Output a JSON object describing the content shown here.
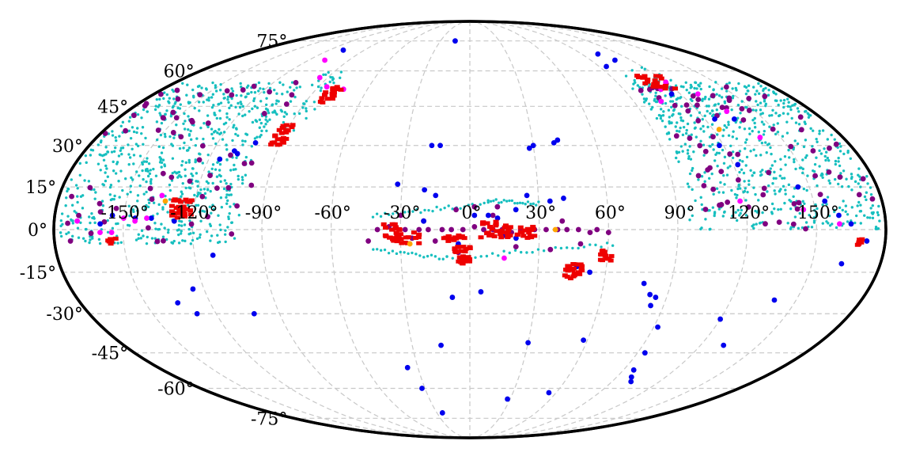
{
  "chart_data": {
    "type": "scatter",
    "projection": "mollweide",
    "title": "",
    "xlabel": "",
    "ylabel": "",
    "xlim": [
      -180,
      180
    ],
    "ylim": [
      -90,
      90
    ],
    "grid": true,
    "longitude_ticks": [
      -150,
      -120,
      -90,
      -60,
      -30,
      0,
      30,
      60,
      90,
      120,
      150
    ],
    "latitude_ticks": [
      -75,
      -60,
      -45,
      -30,
      -15,
      0,
      15,
      30,
      45,
      60,
      75
    ],
    "lon_labels": [
      "-150°",
      "-120°",
      "-90°",
      "-60°",
      "-30°",
      "0°",
      "30°",
      "60°",
      "90°",
      "120°",
      "150°"
    ],
    "lat_labels": [
      "-75°",
      "-60°",
      "-45°",
      "-30°",
      "-15°",
      "0°",
      "15°",
      "30°",
      "45°",
      "60°",
      "75°"
    ],
    "colors": {
      "cyan": "#17bfbf",
      "purple": "#800080",
      "blue": "#0000ee",
      "magenta": "#ff00ff",
      "red": "#ee0000",
      "orange": "#ffa500"
    },
    "series": [
      {
        "color_key": "cyan",
        "style": "small-dot",
        "regions": [
          {
            "lon": [
              -178,
              -100
            ],
            "lat": [
              -5,
              55
            ],
            "count": 700
          },
          {
            "lon": [
              -100,
              -82
            ],
            "lat": [
              35,
              62
            ],
            "count": 40
          },
          {
            "lon": [
              95,
              178
            ],
            "lat": [
              0,
              55
            ],
            "count": 650
          },
          {
            "lon": [
              95,
              130
            ],
            "lat": [
              45,
              62
            ],
            "count": 40
          }
        ],
        "paths": [
          {
            "lon": [
              -42,
              8
            ],
            "lat": [
              5,
              9
            ],
            "count": 30
          },
          {
            "lon": [
              8,
              30
            ],
            "lat": [
              10,
              9
            ],
            "count": 20
          },
          {
            "lon": [
              -42,
              -10
            ],
            "lat": [
              -7,
              -10
            ],
            "count": 20
          },
          {
            "lon": [
              -10,
              62
            ],
            "lat": [
              -10,
              -5
            ],
            "count": 30
          }
        ]
      },
      {
        "color_key": "purple",
        "style": "medium-dot",
        "regions": [
          {
            "lon": [
              -178,
              -95
            ],
            "lat": [
              -5,
              55
            ],
            "count": 60
          },
          {
            "lon": [
              95,
              178
            ],
            "lat": [
              0,
              55
            ],
            "count": 70
          }
        ],
        "points": [
          [
            -44,
            -4
          ],
          [
            -40,
            0
          ],
          [
            -35,
            1
          ],
          [
            -28,
            0
          ],
          [
            -22,
            0
          ],
          [
            -18,
            0
          ],
          [
            -12,
            0
          ],
          [
            -8,
            0
          ],
          [
            -3,
            0
          ],
          [
            2,
            1
          ],
          [
            6,
            0
          ],
          [
            10,
            0
          ],
          [
            14,
            0
          ],
          [
            18,
            -1
          ],
          [
            22,
            0
          ],
          [
            28,
            0
          ],
          [
            33,
            0
          ],
          [
            38,
            0
          ],
          [
            42,
            0
          ],
          [
            47,
            0
          ],
          [
            52,
            -1
          ],
          [
            55,
            0
          ],
          [
            60,
            -1
          ],
          [
            -6,
            7
          ],
          [
            2,
            8
          ],
          [
            12,
            8
          ],
          [
            -25,
            -3
          ],
          [
            -15,
            -4
          ],
          [
            -5,
            -8
          ],
          [
            20,
            -6
          ],
          [
            35,
            -7
          ],
          [
            48,
            -5
          ],
          [
            -30,
            5
          ],
          [
            10,
            5
          ],
          [
            40,
            3
          ],
          [
            -20,
            3
          ]
        ]
      },
      {
        "color_key": "blue",
        "style": "medium-dot",
        "points": [
          [
            -102,
            31
          ],
          [
            -108,
            27
          ],
          [
            -145,
            4
          ],
          [
            -128,
            3
          ],
          [
            -138,
            4
          ],
          [
            -155,
            5
          ],
          [
            -160,
            2
          ],
          [
            -112,
            -9
          ],
          [
            -125,
            -21
          ],
          [
            -135,
            -26
          ],
          [
            -129,
            -30
          ],
          [
            -102,
            -30
          ],
          [
            -110,
            28
          ],
          [
            -115,
            25
          ],
          [
            -108,
            70
          ],
          [
            -32,
            16
          ],
          [
            -20,
            14
          ],
          [
            -15,
            12
          ],
          [
            -18,
            30
          ],
          [
            -14,
            30
          ],
          [
            30,
            30
          ],
          [
            28,
            29
          ],
          [
            40,
            31
          ],
          [
            42,
            32
          ],
          [
            -15,
            75
          ],
          [
            -20,
            3
          ],
          [
            2,
            5
          ],
          [
            8,
            5
          ],
          [
            12,
            4
          ],
          [
            20,
            7
          ],
          [
            25,
            12
          ],
          [
            35,
            10
          ],
          [
            41,
            11
          ],
          [
            5,
            -22
          ],
          [
            58,
            -40
          ],
          [
            78,
            -19
          ],
          [
            82,
            -23
          ],
          [
            85,
            -24
          ],
          [
            92,
            -35
          ],
          [
            94,
            -45
          ],
          [
            96,
            -52
          ],
          [
            99,
            -55
          ],
          [
            102,
            -57
          ],
          [
            122,
            23
          ],
          [
            118,
            30
          ],
          [
            145,
            15
          ],
          [
            155,
            10
          ],
          [
            160,
            5
          ],
          [
            165,
            2
          ],
          [
            172,
            -4
          ],
          [
            163,
            -12
          ],
          [
            140,
            -25
          ],
          [
            132,
            -42
          ],
          [
            120,
            -32
          ],
          [
            108,
            65
          ],
          [
            103,
            68
          ],
          [
            95,
            62
          ],
          [
            115,
            50
          ],
          [
            125,
            40
          ],
          [
            135,
            40
          ],
          [
            -25,
            -72
          ],
          [
            -36,
            -51
          ],
          [
            -32,
            -60
          ],
          [
            -15,
            -42
          ],
          [
            -8,
            -24
          ],
          [
            30,
            -41
          ],
          [
            28,
            -65
          ],
          [
            55,
            -62
          ],
          [
            84,
            -27
          ],
          [
            47,
            -13
          ],
          [
            53,
            -15
          ],
          [
            -5,
            -5
          ],
          [
            15,
            -2
          ],
          [
            20,
            -3
          ]
        ]
      },
      {
        "color_key": "magenta",
        "style": "medium-dot",
        "points": [
          [
            -108,
            65
          ],
          [
            -95,
            57
          ],
          [
            -85,
            53
          ],
          [
            -74,
            52
          ],
          [
            -135,
            12
          ],
          [
            -140,
            4
          ],
          [
            -150,
            4
          ],
          [
            -155,
            -1
          ],
          [
            -160,
            -1
          ],
          [
            -145,
            3
          ],
          [
            -170,
            3
          ],
          [
            120,
            55
          ],
          [
            112,
            52
          ],
          [
            105,
            47
          ],
          [
            130,
            50
          ],
          [
            135,
            43
          ],
          [
            140,
            33
          ],
          [
            118,
            10
          ],
          [
            145,
            7
          ],
          [
            160,
            2
          ],
          [
            15,
            -10
          ]
        ]
      },
      {
        "color_key": "red",
        "style": "square-cluster",
        "clusters": [
          {
            "lon": [
              -130,
              -121
            ],
            "lat": [
              4,
              11
            ],
            "count": 30
          },
          {
            "lon": [
              -157,
              -153
            ],
            "lat": [
              -5,
              -3
            ],
            "count": 6
          },
          {
            "lon": [
              -83,
              -75
            ],
            "lat": [
              46,
              53
            ],
            "count": 18
          },
          {
            "lon": [
              -95,
              -88
            ],
            "lat": [
              30,
              38
            ],
            "count": 24
          },
          {
            "lon": [
              -38,
              -30
            ],
            "lat": [
              -4,
              2
            ],
            "count": 20
          },
          {
            "lon": [
              -33,
              -22
            ],
            "lat": [
              -5,
              -1
            ],
            "count": 18
          },
          {
            "lon": [
              -12,
              -2
            ],
            "lat": [
              -4,
              -2
            ],
            "count": 14
          },
          {
            "lon": [
              -7,
              1
            ],
            "lat": [
              -8,
              -6
            ],
            "count": 12
          },
          {
            "lon": [
              4,
              18
            ],
            "lat": [
              -3,
              3
            ],
            "count": 30
          },
          {
            "lon": [
              20,
              28
            ],
            "lat": [
              -3,
              1
            ],
            "count": 16
          },
          {
            "lon": [
              -7,
              0
            ],
            "lat": [
              -12,
              -9
            ],
            "count": 16
          },
          {
            "lon": [
              42,
              50
            ],
            "lat": [
              -18,
              -12
            ],
            "count": 24
          },
          {
            "lon": [
              57,
              62
            ],
            "lat": [
              -11,
              -7
            ],
            "count": 14
          },
          {
            "lon": [
              106,
              122
            ],
            "lat": [
              52,
              58
            ],
            "count": 22
          },
          {
            "lon": [
              168,
              170
            ],
            "lat": [
              -6,
              -2
            ],
            "count": 6
          }
        ]
      },
      {
        "color_key": "orange",
        "style": "medium-dot",
        "points": [
          [
            -133,
            10
          ],
          [
            -26,
            -5
          ],
          [
            37,
            0
          ],
          [
            123,
            36
          ]
        ]
      }
    ]
  }
}
